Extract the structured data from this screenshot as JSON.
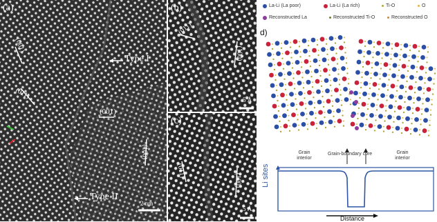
{
  "panel_a": {
    "label": "(a)",
    "type_i": "Type I",
    "type_ii": "Type II",
    "planes": [
      "(001)",
      "(011)",
      "(001)",
      "(100)"
    ],
    "scale": "2 nm"
  },
  "panel_b": {
    "label": "(b)",
    "planes": [
      "(011)",
      "(100)"
    ],
    "scale": "5 Å"
  },
  "panel_c": {
    "label": "(c)",
    "planes": [
      "(011)",
      "(100)"
    ],
    "scale": "5 Å"
  },
  "panel_d": {
    "label": "d)",
    "legend": [
      {
        "text": "La-Li (La poor)",
        "color": "#2c4fa6"
      },
      {
        "text": "La-Li (La rich)",
        "color": "#c8233b"
      },
      {
        "text": "Ti-O",
        "color": "#b5a536"
      },
      {
        "text": "O",
        "color": "#e0b53a"
      },
      {
        "text": "Reconstructed La",
        "color": "#8e3d9e"
      },
      {
        "text": "Reconstructed Ti-O",
        "color": "#6f7e34"
      },
      {
        "text": "Reconstructed O",
        "color": "#c48a4a"
      }
    ],
    "plot": {
      "ylabel": "Li sites",
      "xlabel": "Distance",
      "left_label": "Grain interior",
      "right_label": "Grain interior",
      "core_label": "Grain-boundary core"
    }
  },
  "colors": {
    "line": "#2d55a3",
    "grey_bg": "#3a3a3a"
  }
}
